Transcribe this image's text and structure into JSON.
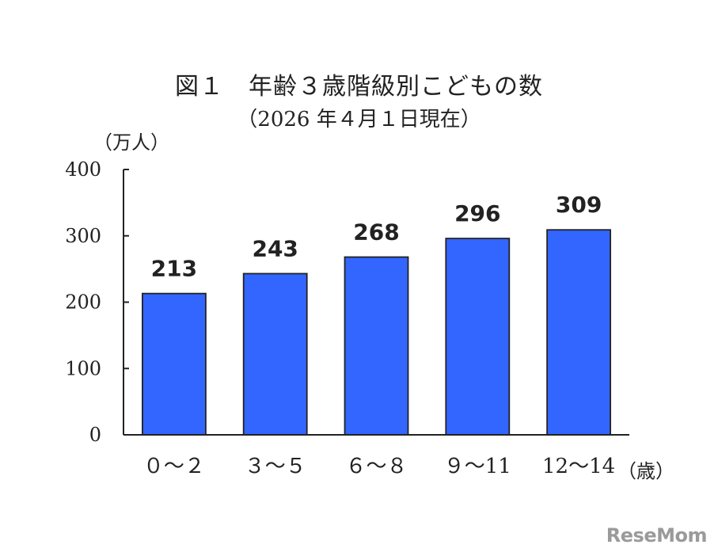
{
  "chart_data": {
    "type": "bar",
    "title": "図１　年齢３歳階級別こどもの数",
    "subtitle": "（2026 年４月１日現在）",
    "ylabel": "（万人）",
    "xlabel": "（歳）",
    "categories": [
      "０～２",
      "３～５",
      "６～８",
      "９～11",
      "12～14"
    ],
    "values": [
      213,
      243,
      268,
      296,
      309
    ],
    "ylim": [
      0,
      400
    ],
    "yticks": [
      "0",
      "100",
      "200",
      "300",
      "400"
    ],
    "data_labels": [
      "213",
      "243",
      "268",
      "296",
      "309"
    ],
    "bar_color": "#3366ff",
    "grid": false,
    "legend": "none"
  },
  "watermark": "ReseMom"
}
